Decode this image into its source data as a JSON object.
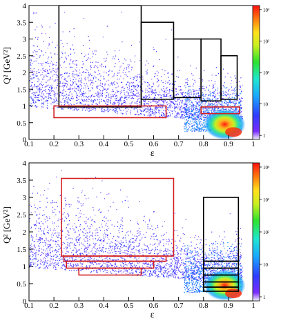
{
  "chart_data": [
    {
      "type": "heatmap",
      "xlabel": "ε",
      "ylabel": "Q² [GeV²]",
      "xlim": [
        0.1,
        1.0
      ],
      "ylim": [
        0,
        4
      ],
      "x_ticks": [
        "0.1",
        "0.2",
        "0.3",
        "0.4",
        "0.5",
        "0.6",
        "0.7",
        "0.8",
        "0.9",
        "1"
      ],
      "y_ticks": [
        "0",
        "0.5",
        "1",
        "1.5",
        "2",
        "2.5",
        "3",
        "3.5",
        "4"
      ],
      "colorbar": {
        "scale": "log",
        "ticks": [
          "1",
          "10",
          "10²",
          "10³",
          "10⁴"
        ]
      },
      "bins_black": [
        {
          "eps": [
            0.22,
            0.55
          ],
          "q2": [
            0.97,
            4.0
          ]
        },
        {
          "eps": [
            0.55,
            0.68
          ],
          "q2": [
            1.2,
            3.5
          ]
        },
        {
          "eps": [
            0.68,
            0.79
          ],
          "q2": [
            1.25,
            3.0
          ]
        },
        {
          "eps": [
            0.79,
            0.87
          ],
          "q2": [
            1.15,
            3.0
          ]
        },
        {
          "eps": [
            0.87,
            0.935
          ],
          "q2": [
            1.2,
            2.5
          ]
        }
      ],
      "bins_red": [
        {
          "eps": [
            0.2,
            0.65
          ],
          "q2": [
            0.65,
            1.0
          ]
        },
        {
          "eps": [
            0.79,
            0.945
          ],
          "q2": [
            0.77,
            0.97
          ]
        }
      ]
    },
    {
      "type": "heatmap",
      "xlabel": "ε",
      "ylabel": "Q² [GeV²]",
      "xlim": [
        0.1,
        1.0
      ],
      "ylim": [
        0,
        4
      ],
      "x_ticks": [
        "0.1",
        "0.2",
        "0.3",
        "0.4",
        "0.5",
        "0.6",
        "0.7",
        "0.8",
        "0.9",
        "1"
      ],
      "y_ticks": [
        "0",
        "0.5",
        "1",
        "1.5",
        "2",
        "2.5",
        "3",
        "3.5",
        "4"
      ],
      "colorbar": {
        "scale": "log",
        "ticks": [
          "1",
          "10",
          "10²",
          "10³",
          "10⁴"
        ]
      },
      "bins_red": [
        {
          "eps": [
            0.23,
            0.68
          ],
          "q2": [
            1.3,
            3.55
          ]
        },
        {
          "eps": [
            0.24,
            0.65
          ],
          "q2": [
            1.15,
            1.3
          ]
        },
        {
          "eps": [
            0.25,
            0.6
          ],
          "q2": [
            0.95,
            1.15
          ]
        },
        {
          "eps": [
            0.3,
            0.55
          ],
          "q2": [
            0.75,
            0.95
          ]
        }
      ],
      "bins_black": [
        {
          "eps": [
            0.8,
            0.94
          ],
          "q2": [
            1.15,
            3.0
          ]
        },
        {
          "eps": [
            0.8,
            0.94
          ],
          "q2": [
            0.95,
            1.15
          ]
        },
        {
          "eps": [
            0.8,
            0.94
          ],
          "q2": [
            0.75,
            0.95
          ]
        },
        {
          "eps": [
            0.8,
            0.94
          ],
          "q2": [
            0.55,
            0.75
          ]
        },
        {
          "eps": [
            0.8,
            0.94
          ],
          "q2": [
            0.4,
            0.55
          ]
        },
        {
          "eps": [
            0.8,
            0.94
          ],
          "q2": [
            0.28,
            0.4
          ]
        }
      ]
    }
  ]
}
